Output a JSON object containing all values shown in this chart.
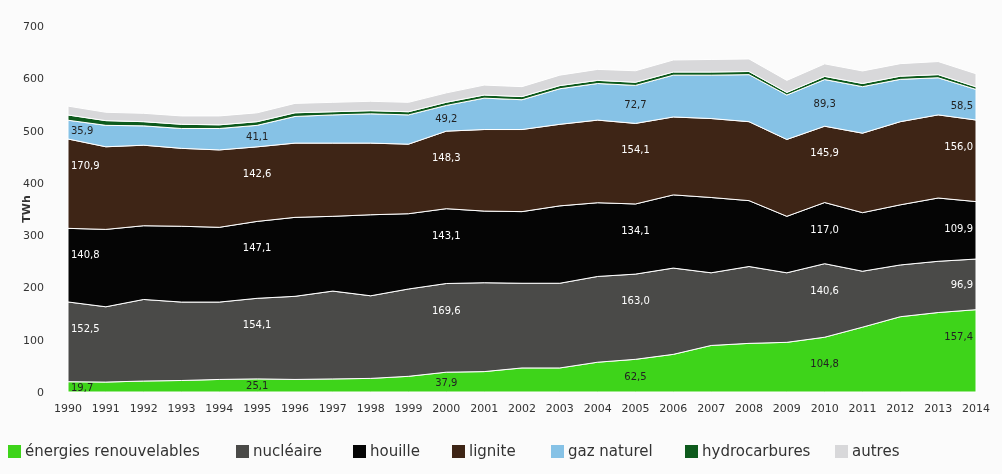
{
  "chart_data": {
    "type": "area",
    "stacked": true,
    "ylabel": "TWh",
    "ylim": [
      0,
      700
    ],
    "yticks": [
      0,
      100,
      200,
      300,
      400,
      500,
      600,
      700
    ],
    "legend": "bottom",
    "grid": false,
    "categories": [
      "1990",
      "1991",
      "1992",
      "1993",
      "1994",
      "1995",
      "1996",
      "1997",
      "1998",
      "1999",
      "2000",
      "2001",
      "2002",
      "2003",
      "2004",
      "2005",
      "2006",
      "2007",
      "2008",
      "2009",
      "2010",
      "2011",
      "2012",
      "2013",
      "2014"
    ],
    "series": [
      {
        "name": "énergies renouvelables",
        "color": "#3ed41a",
        "values": [
          19.7,
          19,
          21,
          22,
          24,
          25.1,
          24,
          25,
          26,
          30,
          37.9,
          39,
          46,
          46,
          57,
          62.5,
          72,
          89,
          93,
          95,
          104.8,
          124,
          144,
          152,
          157.4
        ],
        "value_labels": [
          "19,7",
          null,
          null,
          null,
          null,
          "25,1",
          null,
          null,
          null,
          null,
          "37,9",
          null,
          null,
          null,
          null,
          "62,5",
          null,
          null,
          null,
          null,
          "104,8",
          null,
          null,
          null,
          "157,4"
        ]
      },
      {
        "name": "nucléaire",
        "color": "#4a4a48",
        "values": [
          152.5,
          144,
          156,
          150,
          148,
          154.1,
          159,
          168,
          158,
          167,
          169.6,
          170,
          162,
          162,
          164,
          163.0,
          165,
          139,
          147,
          133,
          140.6,
          107,
          99,
          98,
          96.9
        ],
        "value_labels": [
          "152,5",
          null,
          null,
          null,
          null,
          "154,1",
          null,
          null,
          null,
          null,
          "169,6",
          null,
          null,
          null,
          null,
          "163,0",
          null,
          null,
          null,
          null,
          "140,6",
          null,
          null,
          null,
          "96,9"
        ]
      },
      {
        "name": "houille",
        "color": "#050505",
        "values": [
          140.8,
          148,
          141,
          145,
          143,
          147.1,
          151,
          143,
          155,
          144,
          143.1,
          137,
          137,
          148,
          141,
          134.1,
          140,
          144,
          126,
          108,
          117.0,
          112,
          115,
          121,
          109.9
        ],
        "value_labels": [
          "140,8",
          null,
          null,
          null,
          null,
          "147,1",
          null,
          null,
          null,
          null,
          "143,1",
          null,
          null,
          null,
          null,
          "134,1",
          null,
          null,
          null,
          null,
          "117,0",
          null,
          null,
          null,
          "109,9"
        ]
      },
      {
        "name": "lignite",
        "color": "#3e2516",
        "values": [
          170.9,
          158,
          154,
          149,
          148,
          142.6,
          142,
          140,
          137,
          133,
          148.3,
          156,
          157,
          156,
          158,
          154.1,
          149,
          151,
          151,
          147,
          145.9,
          152,
          159,
          159,
          156.0
        ],
        "value_labels": [
          "170,9",
          null,
          null,
          null,
          null,
          "142,6",
          null,
          null,
          null,
          null,
          "148,3",
          null,
          null,
          null,
          null,
          "154,1",
          null,
          null,
          null,
          null,
          "145,9",
          null,
          null,
          null,
          "156,0"
        ]
      },
      {
        "name": "gaz naturel",
        "color": "#86c2e6",
        "values": [
          35.9,
          41,
          37,
          38,
          41,
          41.1,
          51,
          54,
          56,
          56,
          49.2,
          60,
          57,
          68,
          70,
          72.7,
          80,
          83,
          90,
          85,
          89.3,
          89,
          81,
          71,
          58.5
        ],
        "value_labels": [
          "35,9",
          null,
          null,
          null,
          null,
          "41,1",
          null,
          null,
          null,
          null,
          "49,2",
          null,
          null,
          null,
          null,
          "72,7",
          null,
          null,
          null,
          null,
          "89,3",
          null,
          null,
          null,
          "58,5"
        ]
      },
      {
        "name": "hydrocarbures",
        "color": "#0d5a1c",
        "values": [
          10,
          9,
          8,
          8,
          7,
          7,
          7,
          6,
          6,
          6,
          6,
          6,
          6,
          6,
          6,
          6,
          6,
          6,
          6,
          5,
          6,
          6,
          6,
          6,
          5
        ]
      },
      {
        "name": "autres",
        "color": "#d8d8da",
        "values": [
          17,
          16,
          16,
          16,
          17,
          17,
          18,
          18,
          18,
          18,
          18,
          19,
          19,
          20,
          21,
          22,
          23,
          24,
          24,
          23,
          24,
          24,
          24,
          25,
          25
        ]
      }
    ]
  }
}
